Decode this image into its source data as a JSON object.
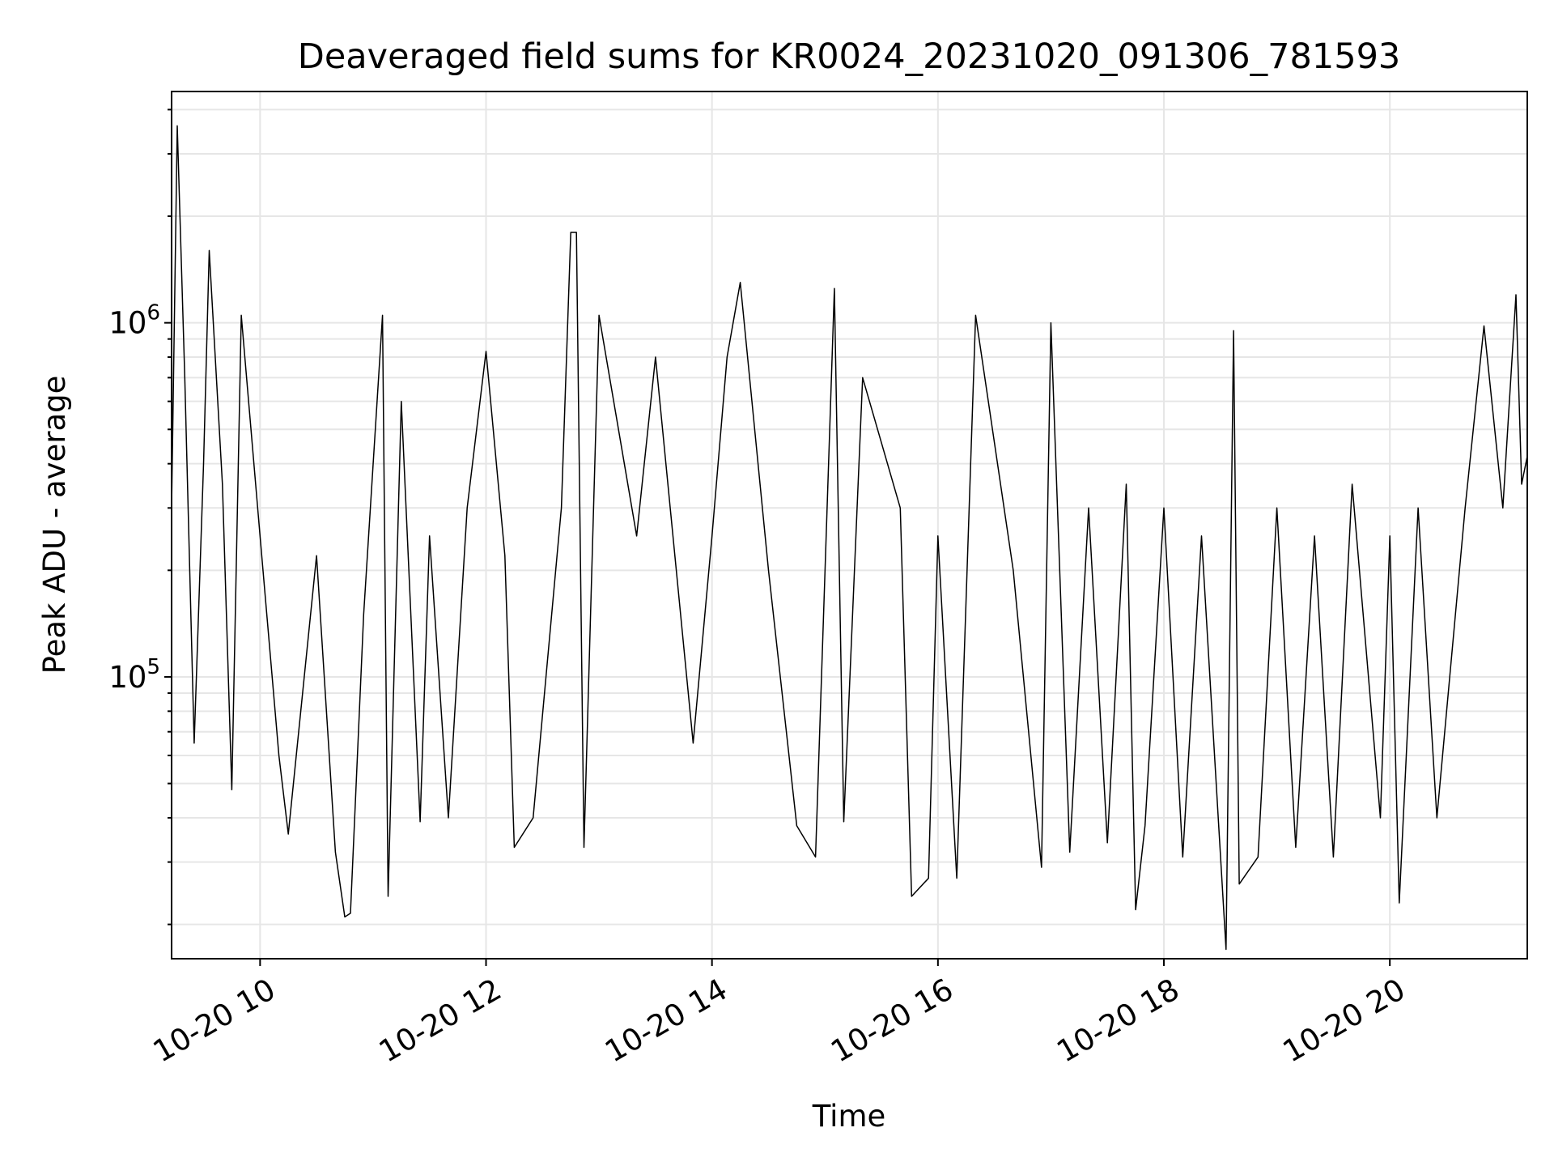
{
  "chart_data": {
    "type": "line",
    "title": "Deaveraged field sums for KR0024_20231020_091306_781593",
    "xlabel": "Time",
    "ylabel": "Peak ADU - average",
    "yscale": "log",
    "x_range": [
      "2023-10-20 09:13",
      "2023-10-20 21:13"
    ],
    "ylim": [
      16000,
      4500000
    ],
    "grid": true,
    "x_ticks": [
      {
        "t": "2023-10-20 10:00",
        "label": "10-20 10"
      },
      {
        "t": "2023-10-20 12:00",
        "label": "10-20 12"
      },
      {
        "t": "2023-10-20 14:00",
        "label": "10-20 14"
      },
      {
        "t": "2023-10-20 16:00",
        "label": "10-20 16"
      },
      {
        "t": "2023-10-20 18:00",
        "label": "10-20 18"
      },
      {
        "t": "2023-10-20 20:00",
        "label": "10-20 20"
      }
    ],
    "y_major_ticks": [
      {
        "value": 100000,
        "base": "10",
        "exp": "5"
      },
      {
        "value": 1000000,
        "base": "10",
        "exp": "6"
      }
    ],
    "line_color": "#000000",
    "series": [
      {
        "points": [
          [
            "2023-10-20 09:13",
            300000
          ],
          [
            "2023-10-20 09:16",
            3600000
          ],
          [
            "2023-10-20 09:20",
            700000
          ],
          [
            "2023-10-20 09:25",
            65000
          ],
          [
            "2023-10-20 09:30",
            400000
          ],
          [
            "2023-10-20 09:33",
            1600000
          ],
          [
            "2023-10-20 09:40",
            350000
          ],
          [
            "2023-10-20 09:45",
            48000
          ],
          [
            "2023-10-20 09:50",
            1050000
          ],
          [
            "2023-10-20 10:00",
            250000
          ],
          [
            "2023-10-20 10:10",
            60000
          ],
          [
            "2023-10-20 10:15",
            36000
          ],
          [
            "2023-10-20 10:30",
            220000
          ],
          [
            "2023-10-20 10:40",
            32000
          ],
          [
            "2023-10-20 10:45",
            21000
          ],
          [
            "2023-10-20 10:48",
            21500
          ],
          [
            "2023-10-20 10:55",
            150000
          ],
          [
            "2023-10-20 11:05",
            1050000
          ],
          [
            "2023-10-20 11:08",
            24000
          ],
          [
            "2023-10-20 11:15",
            600000
          ],
          [
            "2023-10-20 11:25",
            39000
          ],
          [
            "2023-10-20 11:30",
            250000
          ],
          [
            "2023-10-20 11:40",
            40000
          ],
          [
            "2023-10-20 11:50",
            300000
          ],
          [
            "2023-10-20 12:00",
            830000
          ],
          [
            "2023-10-20 12:10",
            220000
          ],
          [
            "2023-10-20 12:15",
            33000
          ],
          [
            "2023-10-20 12:25",
            40000
          ],
          [
            "2023-10-20 12:40",
            300000
          ],
          [
            "2023-10-20 12:45",
            1800000
          ],
          [
            "2023-10-20 12:48",
            1800000
          ],
          [
            "2023-10-20 12:52",
            33000
          ],
          [
            "2023-10-20 13:00",
            1050000
          ],
          [
            "2023-10-20 13:20",
            250000
          ],
          [
            "2023-10-20 13:30",
            800000
          ],
          [
            "2023-10-20 13:50",
            65000
          ],
          [
            "2023-10-20 14:00",
            250000
          ],
          [
            "2023-10-20 14:08",
            800000
          ],
          [
            "2023-10-20 14:15",
            1300000
          ],
          [
            "2023-10-20 14:30",
            200000
          ],
          [
            "2023-10-20 14:45",
            38000
          ],
          [
            "2023-10-20 14:55",
            31000
          ],
          [
            "2023-10-20 15:05",
            1250000
          ],
          [
            "2023-10-20 15:10",
            39000
          ],
          [
            "2023-10-20 15:20",
            700000
          ],
          [
            "2023-10-20 15:40",
            300000
          ],
          [
            "2023-10-20 15:46",
            24000
          ],
          [
            "2023-10-20 15:55",
            27000
          ],
          [
            "2023-10-20 16:00",
            250000
          ],
          [
            "2023-10-20 16:10",
            27000
          ],
          [
            "2023-10-20 16:20",
            1050000
          ],
          [
            "2023-10-20 16:40",
            200000
          ],
          [
            "2023-10-20 16:55",
            29000
          ],
          [
            "2023-10-20 17:00",
            1000000
          ],
          [
            "2023-10-20 17:10",
            32000
          ],
          [
            "2023-10-20 17:20",
            300000
          ],
          [
            "2023-10-20 17:30",
            34000
          ],
          [
            "2023-10-20 17:40",
            350000
          ],
          [
            "2023-10-20 17:45",
            22000
          ],
          [
            "2023-10-20 17:50",
            38000
          ],
          [
            "2023-10-20 18:00",
            300000
          ],
          [
            "2023-10-20 18:10",
            31000
          ],
          [
            "2023-10-20 18:20",
            250000
          ],
          [
            "2023-10-20 18:33",
            17000
          ],
          [
            "2023-10-20 18:37",
            950000
          ],
          [
            "2023-10-20 18:40",
            26000
          ],
          [
            "2023-10-20 18:50",
            31000
          ],
          [
            "2023-10-20 19:00",
            300000
          ],
          [
            "2023-10-20 19:10",
            33000
          ],
          [
            "2023-10-20 19:20",
            250000
          ],
          [
            "2023-10-20 19:30",
            31000
          ],
          [
            "2023-10-20 19:40",
            350000
          ],
          [
            "2023-10-20 19:55",
            40000
          ],
          [
            "2023-10-20 20:00",
            250000
          ],
          [
            "2023-10-20 20:05",
            23000
          ],
          [
            "2023-10-20 20:15",
            300000
          ],
          [
            "2023-10-20 20:25",
            40000
          ],
          [
            "2023-10-20 20:40",
            300000
          ],
          [
            "2023-10-20 20:50",
            980000
          ],
          [
            "2023-10-20 21:00",
            300000
          ],
          [
            "2023-10-20 21:07",
            1200000
          ],
          [
            "2023-10-20 21:10",
            350000
          ],
          [
            "2023-10-20 21:13",
            420000
          ]
        ]
      }
    ]
  }
}
